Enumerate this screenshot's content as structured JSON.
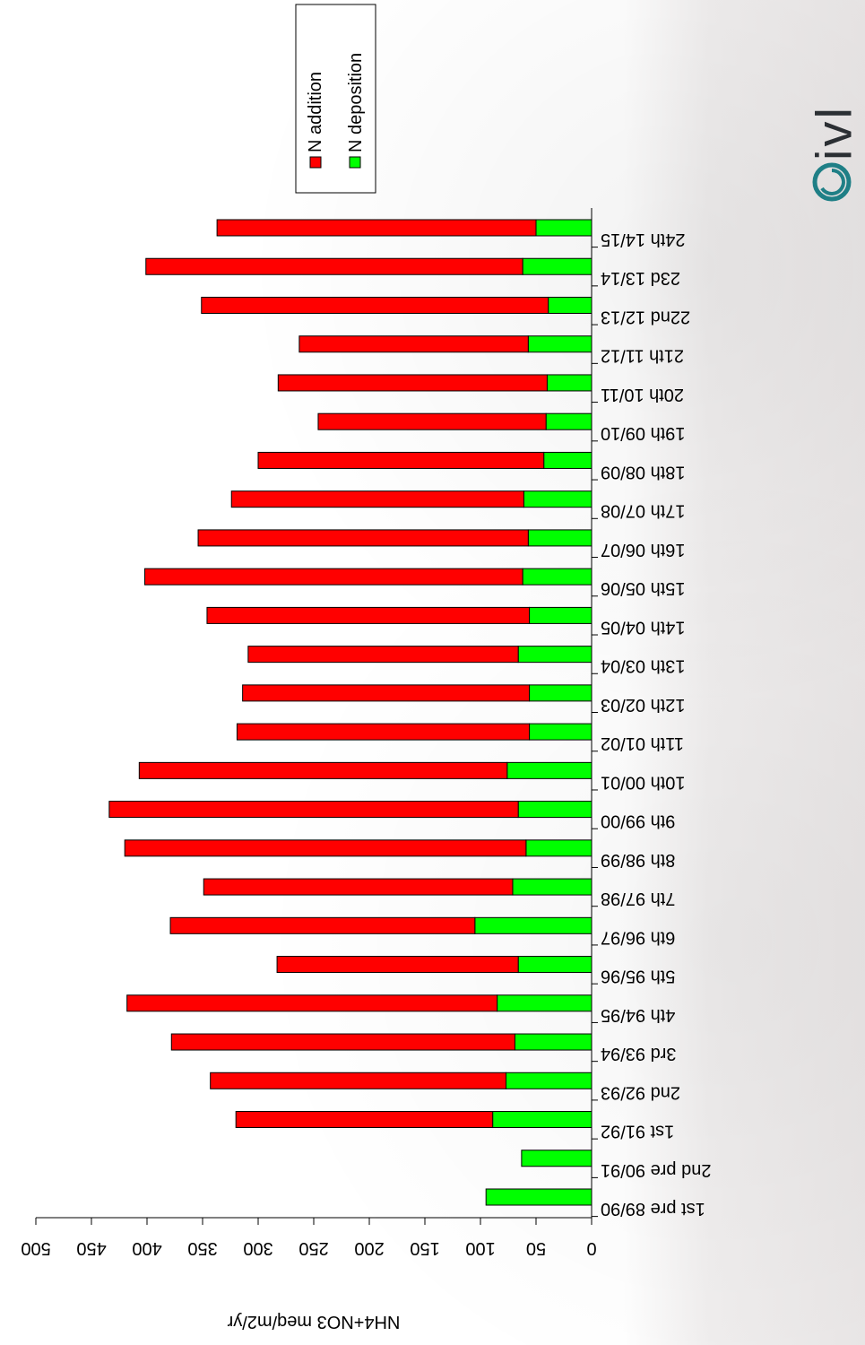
{
  "logo": {
    "text": "ivl"
  },
  "chart_data": {
    "type": "bar",
    "orientation": "horizontal-stacked-rotated",
    "title": "",
    "ylabel": "NH4+NO3 meq/m2/yr",
    "xlabel": "",
    "xlim": [
      0,
      500
    ],
    "ticks": [
      "0",
      "50",
      "100",
      "150",
      "200",
      "250",
      "300",
      "350",
      "400",
      "450",
      "500"
    ],
    "grid": false,
    "legend_position": "top-right",
    "categories": [
      "1st pre 89/90",
      "2nd pre 90/91",
      "1st 91/92",
      "2nd 92/93",
      "3rd  93/94",
      "4th  94/95",
      "5th  95/96",
      "6th  96/97",
      "7th 97/98",
      "8th 98/99",
      "9th 99/00",
      "10th 00/01",
      "11th 01/02",
      "12th 02/03",
      "13th 03/04",
      "14th 04/05",
      "15th 05/06",
      "16th 06/07",
      "17th 07/08",
      "18th 08/09",
      "19th 09/10",
      "20th 10/11",
      "21th 11/12",
      "22nd 12/13",
      "23d 13/14",
      "24th 14/15"
    ],
    "series": [
      {
        "name": "N deposition",
        "color": "#00ff00",
        "values": [
          95,
          63,
          89,
          77,
          69,
          85,
          66,
          105,
          71,
          59,
          66,
          76,
          56,
          56,
          66,
          56,
          62,
          57,
          61,
          43,
          41,
          40,
          57,
          39,
          62,
          50
        ]
      },
      {
        "name": "N addition",
        "color": "#ff0000",
        "values": [
          0,
          0,
          231,
          266,
          309,
          333,
          217,
          274,
          278,
          361,
          368,
          331,
          263,
          258,
          243,
          290,
          340,
          297,
          263,
          257,
          205,
          242,
          206,
          312,
          339,
          287
        ]
      }
    ]
  }
}
